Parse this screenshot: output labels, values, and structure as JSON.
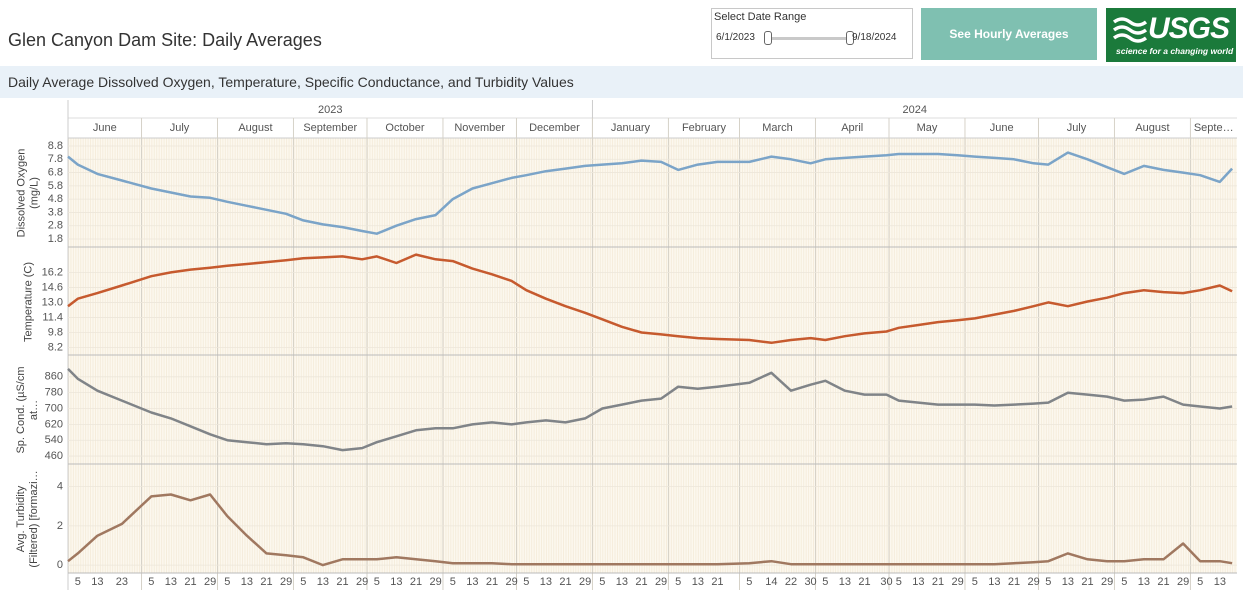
{
  "header": {
    "title": "Glen Canyon Dam Site: Daily Averages",
    "date_range": {
      "label": "Select Date Range",
      "start": "6/1/2023",
      "end": "9/18/2024"
    },
    "button": "See Hourly Averages",
    "logo": {
      "text": "USGS",
      "tagline": "science for a changing world"
    }
  },
  "chart_data": {
    "type": "line",
    "title": "Daily Average Dissolved Oxygen, Temperature, Specific Conductance, and Turbidity Values",
    "xlim": [
      "2023-06-01",
      "2024-09-20"
    ],
    "years": [
      2023,
      2024
    ],
    "months": [
      {
        "value": "2023-06",
        "label": "June"
      },
      {
        "value": "2023-07",
        "label": "July"
      },
      {
        "value": "2023-08",
        "label": "August"
      },
      {
        "value": "2023-09",
        "label": "September"
      },
      {
        "value": "2023-10",
        "label": "October"
      },
      {
        "value": "2023-11",
        "label": "November"
      },
      {
        "value": "2023-12",
        "label": "December"
      },
      {
        "value": "2024-01",
        "label": "January"
      },
      {
        "value": "2024-02",
        "label": "February"
      },
      {
        "value": "2024-03",
        "label": "March"
      },
      {
        "value": "2024-04",
        "label": "April"
      },
      {
        "value": "2024-05",
        "label": "May"
      },
      {
        "value": "2024-06",
        "label": "June"
      },
      {
        "value": "2024-07",
        "label": "July"
      },
      {
        "value": "2024-08",
        "label": "August"
      },
      {
        "value": "2024-09",
        "label": "Septe…"
      }
    ],
    "xticks": [
      {
        "value": "2023-06-05",
        "label": "5"
      },
      {
        "value": "2023-06-13",
        "label": "13"
      },
      {
        "value": "2023-06-23",
        "label": "23"
      },
      {
        "value": "2023-07-05",
        "label": "5"
      },
      {
        "value": "2023-07-13",
        "label": "13"
      },
      {
        "value": "2023-07-21",
        "label": "21"
      },
      {
        "value": "2023-07-29",
        "label": "29"
      },
      {
        "value": "2023-08-05",
        "label": "5"
      },
      {
        "value": "2023-08-13",
        "label": "13"
      },
      {
        "value": "2023-08-21",
        "label": "21"
      },
      {
        "value": "2023-08-29",
        "label": "29"
      },
      {
        "value": "2023-09-05",
        "label": "5"
      },
      {
        "value": "2023-09-13",
        "label": "13"
      },
      {
        "value": "2023-09-21",
        "label": "21"
      },
      {
        "value": "2023-09-29",
        "label": "29"
      },
      {
        "value": "2023-10-05",
        "label": "5"
      },
      {
        "value": "2023-10-13",
        "label": "13"
      },
      {
        "value": "2023-10-21",
        "label": "21"
      },
      {
        "value": "2023-10-29",
        "label": "29"
      },
      {
        "value": "2023-11-05",
        "label": "5"
      },
      {
        "value": "2023-11-13",
        "label": "13"
      },
      {
        "value": "2023-11-21",
        "label": "21"
      },
      {
        "value": "2023-11-29",
        "label": "29"
      },
      {
        "value": "2023-12-05",
        "label": "5"
      },
      {
        "value": "2023-12-13",
        "label": "13"
      },
      {
        "value": "2023-12-21",
        "label": "21"
      },
      {
        "value": "2023-12-29",
        "label": "29"
      },
      {
        "value": "2024-01-05",
        "label": "5"
      },
      {
        "value": "2024-01-13",
        "label": "13"
      },
      {
        "value": "2024-01-21",
        "label": "21"
      },
      {
        "value": "2024-01-29",
        "label": "29"
      },
      {
        "value": "2024-02-05",
        "label": "5"
      },
      {
        "value": "2024-02-13",
        "label": "13"
      },
      {
        "value": "2024-02-21",
        "label": "21"
      },
      {
        "value": "2024-03-05",
        "label": "5"
      },
      {
        "value": "2024-03-14",
        "label": "14"
      },
      {
        "value": "2024-03-22",
        "label": "22"
      },
      {
        "value": "2024-03-30",
        "label": "30"
      },
      {
        "value": "2024-04-05",
        "label": "5"
      },
      {
        "value": "2024-04-13",
        "label": "13"
      },
      {
        "value": "2024-04-21",
        "label": "21"
      },
      {
        "value": "2024-04-30",
        "label": "30"
      },
      {
        "value": "2024-05-05",
        "label": "5"
      },
      {
        "value": "2024-05-13",
        "label": "13"
      },
      {
        "value": "2024-05-21",
        "label": "21"
      },
      {
        "value": "2024-05-29",
        "label": "29"
      },
      {
        "value": "2024-06-05",
        "label": "5"
      },
      {
        "value": "2024-06-13",
        "label": "13"
      },
      {
        "value": "2024-06-21",
        "label": "21"
      },
      {
        "value": "2024-06-29",
        "label": "29"
      },
      {
        "value": "2024-07-05",
        "label": "5"
      },
      {
        "value": "2024-07-13",
        "label": "13"
      },
      {
        "value": "2024-07-21",
        "label": "21"
      },
      {
        "value": "2024-07-29",
        "label": "29"
      },
      {
        "value": "2024-08-05",
        "label": "5"
      },
      {
        "value": "2024-08-13",
        "label": "13"
      },
      {
        "value": "2024-08-21",
        "label": "21"
      },
      {
        "value": "2024-08-29",
        "label": "29"
      },
      {
        "value": "2024-09-05",
        "label": "5"
      },
      {
        "value": "2024-09-13",
        "label": "13"
      }
    ],
    "x": [
      "2023-06-01",
      "2023-06-05",
      "2023-06-13",
      "2023-06-23",
      "2023-07-05",
      "2023-07-13",
      "2023-07-21",
      "2023-07-29",
      "2023-08-05",
      "2023-08-13",
      "2023-08-21",
      "2023-08-29",
      "2023-09-05",
      "2023-09-13",
      "2023-09-21",
      "2023-09-29",
      "2023-10-05",
      "2023-10-13",
      "2023-10-21",
      "2023-10-29",
      "2023-11-05",
      "2023-11-13",
      "2023-11-21",
      "2023-11-29",
      "2023-12-05",
      "2023-12-13",
      "2023-12-21",
      "2023-12-29",
      "2024-01-05",
      "2024-01-13",
      "2024-01-21",
      "2024-01-29",
      "2024-02-05",
      "2024-02-13",
      "2024-02-21",
      "2024-03-05",
      "2024-03-14",
      "2024-03-22",
      "2024-03-30",
      "2024-04-05",
      "2024-04-13",
      "2024-04-21",
      "2024-04-30",
      "2024-05-05",
      "2024-05-13",
      "2024-05-21",
      "2024-05-29",
      "2024-06-05",
      "2024-06-13",
      "2024-06-21",
      "2024-06-29",
      "2024-07-05",
      "2024-07-13",
      "2024-07-21",
      "2024-07-29",
      "2024-08-05",
      "2024-08-13",
      "2024-08-21",
      "2024-08-29",
      "2024-09-05",
      "2024-09-13",
      "2024-09-18"
    ],
    "series": [
      {
        "name": "Dissolved Oxygen (mg/L)",
        "color": "#7ba4c8",
        "ylim": [
          1.2,
          9.4
        ],
        "yticks": [
          1.8,
          2.8,
          3.8,
          4.8,
          5.8,
          6.8,
          7.8,
          8.8
        ],
        "values": [
          8.0,
          7.4,
          6.7,
          6.2,
          5.6,
          5.3,
          5.0,
          4.9,
          4.6,
          4.3,
          4.0,
          3.7,
          3.2,
          2.9,
          2.7,
          2.4,
          2.2,
          2.8,
          3.3,
          3.6,
          4.8,
          5.6,
          6.0,
          6.4,
          6.6,
          6.9,
          7.1,
          7.3,
          7.4,
          7.5,
          7.7,
          7.6,
          7.0,
          7.4,
          7.6,
          7.6,
          8.0,
          7.8,
          7.5,
          7.8,
          7.9,
          8.0,
          8.1,
          8.2,
          8.2,
          8.2,
          8.1,
          8.0,
          7.9,
          7.8,
          7.5,
          7.4,
          8.3,
          7.8,
          7.2,
          6.7,
          7.3,
          7.0,
          6.8,
          6.6,
          6.1,
          7.1
        ]
      },
      {
        "name": "Temperature (C)",
        "color": "#c65a2e",
        "ylim": [
          7.4,
          18.8
        ],
        "yticks": [
          8.2,
          9.8,
          11.4,
          {
            "value": 13,
            "label": "13.0"
          },
          14.6,
          16.2
        ],
        "values": [
          12.6,
          13.4,
          14.0,
          14.8,
          15.8,
          16.2,
          16.5,
          16.7,
          16.9,
          17.1,
          17.3,
          17.5,
          17.7,
          17.8,
          17.9,
          17.6,
          17.9,
          17.2,
          18.1,
          17.6,
          17.4,
          16.6,
          16.0,
          15.3,
          14.3,
          13.4,
          12.6,
          11.9,
          11.2,
          10.4,
          9.8,
          9.6,
          9.4,
          9.2,
          9.1,
          9.0,
          8.7,
          9.0,
          9.2,
          9.0,
          9.4,
          9.7,
          9.9,
          10.3,
          10.6,
          10.9,
          11.1,
          11.3,
          11.7,
          12.1,
          12.6,
          13.0,
          12.6,
          13.1,
          13.5,
          14.0,
          14.3,
          14.1,
          14.0,
          14.3,
          14.8,
          14.2
        ]
      },
      {
        "name": "Sp. Cond. (µS/cm at…",
        "color": "#808488",
        "ylim": [
          420,
          965
        ],
        "yticks": [
          460,
          540,
          620,
          700,
          780,
          860
        ],
        "values": [
          900,
          850,
          790,
          740,
          680,
          650,
          610,
          570,
          540,
          530,
          520,
          525,
          520,
          510,
          490,
          500,
          530,
          560,
          590,
          600,
          600,
          620,
          630,
          620,
          630,
          640,
          630,
          650,
          700,
          720,
          740,
          750,
          810,
          800,
          810,
          830,
          880,
          790,
          820,
          840,
          790,
          770,
          770,
          740,
          730,
          720,
          720,
          720,
          715,
          720,
          725,
          730,
          780,
          770,
          760,
          740,
          745,
          760,
          720,
          710,
          700,
          710
        ]
      },
      {
        "name": "Avg. Turbidity (Filtered) [formazi…",
        "color": "#a07860",
        "ylim": [
          -0.4,
          5.1
        ],
        "yticks": [
          0,
          2,
          4
        ],
        "values": [
          0.2,
          0.6,
          1.5,
          2.1,
          3.5,
          3.6,
          3.3,
          3.6,
          2.5,
          1.5,
          0.6,
          0.5,
          0.4,
          0,
          0.3,
          0.3,
          0.3,
          0.4,
          0.3,
          0.2,
          0.1,
          0.1,
          0.1,
          0.05,
          0.05,
          0.05,
          0.05,
          0.05,
          0.05,
          0.05,
          0.05,
          0.05,
          0.05,
          0.05,
          0.05,
          0.1,
          0.2,
          0.05,
          0.05,
          0.05,
          0.05,
          0.05,
          0.05,
          0.05,
          0.05,
          0.05,
          0.05,
          0.05,
          0.05,
          0.1,
          0.15,
          0.2,
          0.6,
          0.3,
          0.2,
          0.2,
          0.3,
          0.3,
          1.1,
          0.2,
          0.2,
          0.1
        ]
      }
    ]
  }
}
